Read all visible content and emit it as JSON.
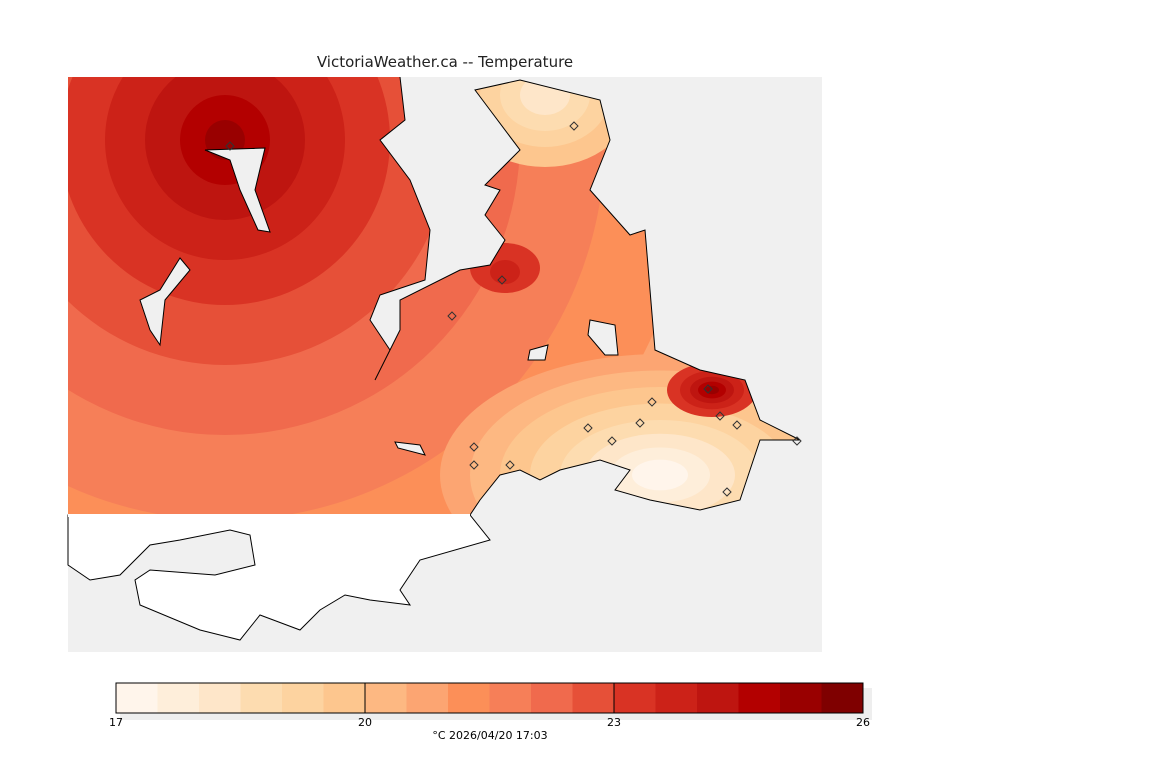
{
  "title": "VictoriaWeather.ca -- Temperature",
  "colorbar": {
    "unit": "°C",
    "timestamp": "2026/04/20 17:03",
    "caption": "°C  2026/04/20 17:03",
    "min": 17,
    "max": 26,
    "step": 0.5,
    "tick_labels": [
      "17",
      "20",
      "23",
      "26"
    ],
    "colors": [
      "#fff5eb",
      "#feeeda",
      "#fee6c9",
      "#fddcb0",
      "#fdd3a0",
      "#fdc68e",
      "#fdb882",
      "#fca572",
      "#fc8f58",
      "#f67f58",
      "#f06a4d",
      "#e65038",
      "#d93324",
      "#cc2218",
      "#be1510",
      "#b30000",
      "#990000",
      "#7f0000"
    ]
  },
  "colors": {
    "ocean": "#f0f0f0",
    "nodata_land": "#ffffff",
    "coastline": "#000000"
  }
}
